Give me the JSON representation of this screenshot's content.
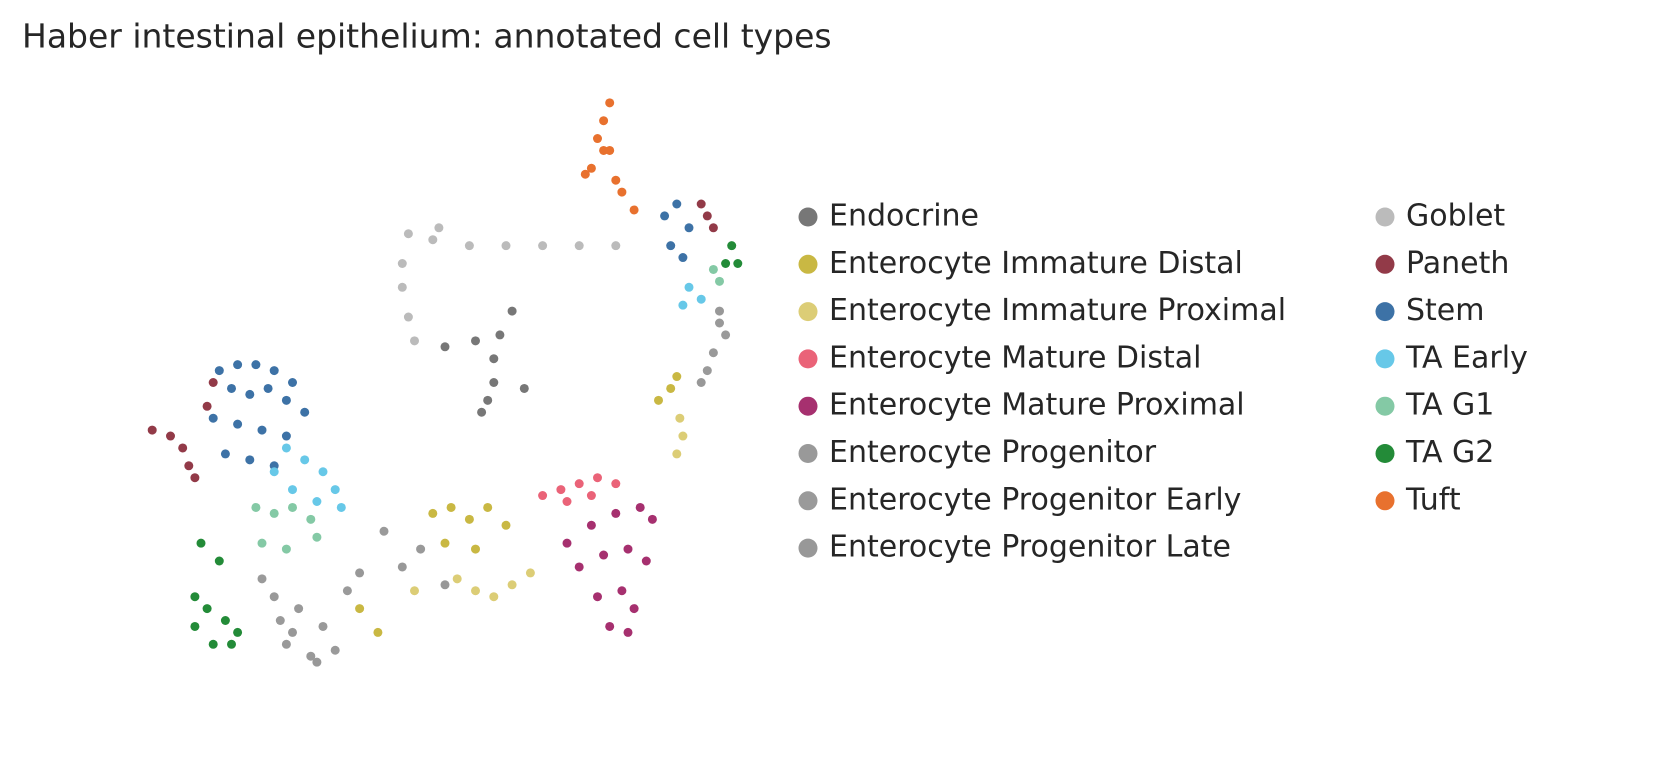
{
  "chart_data": {
    "type": "scatter",
    "title": "Haber intestinal epithelium: annotated cell types",
    "xlim": [
      0,
      10
    ],
    "ylim": [
      0,
      10
    ],
    "series": [
      {
        "name": "Endocrine",
        "color": "#777777",
        "x": [
          6.1,
          5.9,
          5.5,
          5.0,
          5.8,
          5.8,
          5.7,
          6.3,
          5.6
        ],
        "y": [
          6.2,
          5.8,
          5.7,
          5.6,
          5.4,
          5.0,
          4.7,
          4.9,
          4.5
        ]
      },
      {
        "name": "Enterocyte Immature Distal",
        "color": "#c9b843",
        "x": [
          4.8,
          5.1,
          5.4,
          5.7,
          6.0,
          5.0,
          5.5,
          3.6,
          3.9,
          8.5,
          8.7,
          8.8
        ],
        "y": [
          2.8,
          2.9,
          2.7,
          2.9,
          2.6,
          2.3,
          2.2,
          1.2,
          0.8,
          4.7,
          4.9,
          5.1
        ]
      },
      {
        "name": "Enterocyte Immature Proximal",
        "color": "#dccd76",
        "x": [
          5.2,
          5.5,
          5.8,
          6.1,
          6.4,
          4.5,
          8.85,
          8.9,
          8.8
        ],
        "y": [
          1.7,
          1.5,
          1.4,
          1.6,
          1.8,
          1.5,
          4.4,
          4.1,
          3.8
        ]
      },
      {
        "name": "Enterocyte Mature Distal",
        "color": "#ea6378",
        "x": [
          6.6,
          6.9,
          7.2,
          7.5,
          7.8,
          7.0,
          7.4
        ],
        "y": [
          3.1,
          3.2,
          3.3,
          3.4,
          3.3,
          3.0,
          3.1
        ]
      },
      {
        "name": "Enterocyte Mature Proximal",
        "color": "#a6306f",
        "x": [
          7.0,
          7.4,
          7.8,
          8.2,
          8.4,
          7.2,
          7.6,
          8.0,
          8.3,
          7.5,
          7.9,
          8.1,
          7.7,
          8.0
        ],
        "y": [
          2.3,
          2.6,
          2.8,
          2.9,
          2.7,
          1.9,
          2.1,
          2.2,
          2.0,
          1.4,
          1.5,
          1.2,
          0.9,
          0.8
        ]
      },
      {
        "name": "Enterocyte Progenitor",
        "color": "#999999",
        "x": [
          2.2,
          2.6,
          3.0,
          2.4,
          2.8,
          4.6,
          9.5,
          9.4
        ],
        "y": [
          1.4,
          1.2,
          0.9,
          0.6,
          0.4,
          2.2,
          6.0,
          5.5
        ]
      },
      {
        "name": "Enterocyte Progenitor Early",
        "color": "#9a9a9a",
        "x": [
          2.0,
          2.3,
          3.2,
          3.4,
          4.0,
          9.6,
          9.3
        ],
        "y": [
          1.7,
          1.0,
          0.5,
          1.5,
          2.5,
          5.8,
          5.2
        ]
      },
      {
        "name": "Enterocyte Progenitor Late",
        "color": "#989898",
        "x": [
          2.5,
          2.9,
          3.6,
          4.3,
          5.0,
          9.5,
          9.2
        ],
        "y": [
          0.8,
          0.3,
          1.8,
          1.9,
          1.6,
          6.2,
          5.0
        ]
      },
      {
        "name": "Goblet",
        "color": "#bbbbbb",
        "x": [
          4.4,
          4.9,
          5.4,
          6.0,
          6.6,
          7.2,
          7.8,
          4.3,
          4.3,
          4.4,
          4.5,
          4.8
        ],
        "y": [
          7.5,
          7.6,
          7.3,
          7.3,
          7.3,
          7.3,
          7.3,
          7.0,
          6.6,
          6.1,
          5.7,
          7.4
        ]
      },
      {
        "name": "Paneth",
        "color": "#923a48",
        "x": [
          0.2,
          0.5,
          0.7,
          0.8,
          0.9,
          1.1,
          1.2,
          9.2,
          9.3,
          9.4
        ],
        "y": [
          4.2,
          4.1,
          3.9,
          3.6,
          3.4,
          4.6,
          5.0,
          8.0,
          7.8,
          7.6
        ]
      },
      {
        "name": "Stem",
        "color": "#3d72a6",
        "x": [
          1.3,
          1.6,
          1.9,
          2.2,
          2.5,
          1.5,
          1.8,
          2.1,
          2.4,
          2.7,
          1.2,
          1.6,
          2.0,
          2.4,
          1.4,
          1.8,
          2.2,
          8.6,
          8.8,
          9.0,
          8.7,
          8.9
        ],
        "y": [
          5.2,
          5.3,
          5.3,
          5.2,
          5.0,
          4.9,
          4.8,
          4.9,
          4.7,
          4.5,
          4.4,
          4.3,
          4.2,
          4.1,
          3.8,
          3.7,
          3.6,
          7.8,
          8.0,
          7.6,
          7.3,
          7.1
        ]
      },
      {
        "name": "TA Early",
        "color": "#67c8e8",
        "x": [
          2.4,
          2.7,
          3.0,
          3.2,
          2.5,
          2.9,
          3.3,
          2.2,
          9.0,
          8.9,
          9.2
        ],
        "y": [
          3.9,
          3.7,
          3.5,
          3.2,
          3.2,
          3.0,
          2.9,
          3.5,
          6.6,
          6.3,
          6.4
        ]
      },
      {
        "name": "TA G1",
        "color": "#84c9a5",
        "x": [
          1.9,
          2.2,
          2.5,
          2.8,
          2.0,
          2.4,
          2.9,
          9.4,
          9.5
        ],
        "y": [
          2.9,
          2.8,
          2.9,
          2.7,
          2.3,
          2.2,
          2.4,
          6.9,
          6.7
        ]
      },
      {
        "name": "TA G2",
        "color": "#238b38",
        "x": [
          0.9,
          1.1,
          1.4,
          1.6,
          0.9,
          1.2,
          1.5,
          1.0,
          1.3,
          9.6,
          9.8,
          9.7
        ],
        "y": [
          1.4,
          1.2,
          1.0,
          0.8,
          0.9,
          0.6,
          0.6,
          2.3,
          2.0,
          7.0,
          7.0,
          7.3
        ]
      },
      {
        "name": "Tuft",
        "color": "#e8712e",
        "x": [
          7.7,
          7.6,
          7.5,
          7.6,
          7.4,
          7.3,
          7.8,
          7.9,
          8.1,
          7.7
        ],
        "y": [
          9.7,
          9.4,
          9.1,
          8.9,
          8.6,
          8.5,
          8.4,
          8.2,
          7.9,
          8.9
        ]
      }
    ]
  }
}
